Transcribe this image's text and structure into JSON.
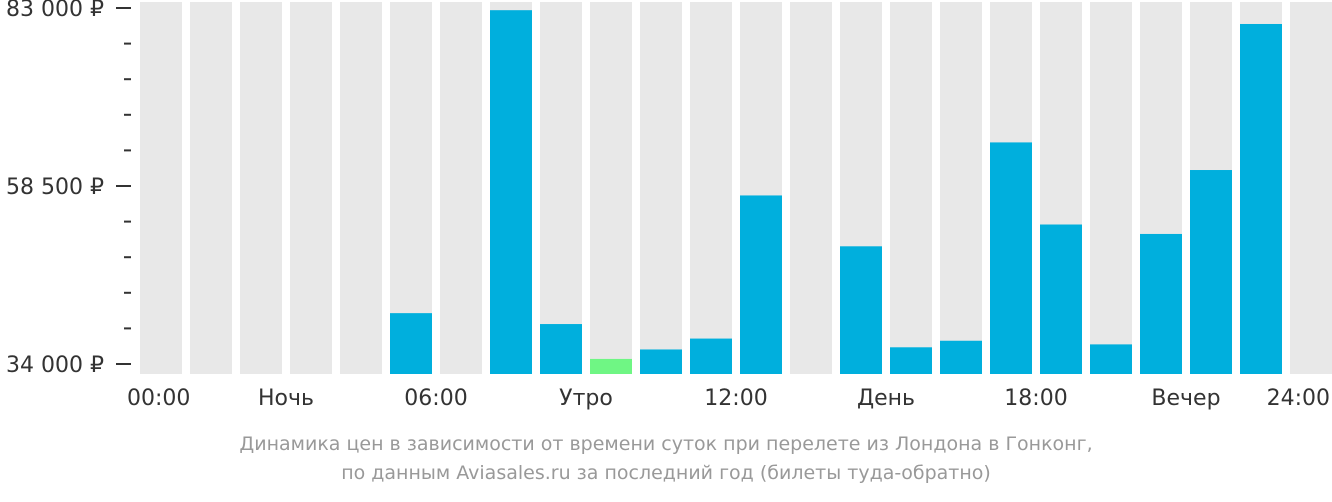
{
  "chart_data": {
    "type": "bar",
    "categories": [
      "00",
      "01",
      "02",
      "03",
      "04",
      "05",
      "06",
      "07",
      "08",
      "09",
      "10",
      "11",
      "12",
      "13",
      "14",
      "15",
      "16",
      "17",
      "18",
      "19",
      "20",
      "21",
      "22",
      "23"
    ],
    "values": [
      null,
      null,
      null,
      null,
      null,
      41000,
      null,
      82700,
      39500,
      34700,
      36000,
      37500,
      57200,
      null,
      50200,
      36300,
      37200,
      64500,
      53200,
      36700,
      51900,
      60700,
      80800,
      null
    ],
    "highlight_index": 9,
    "ylim": [
      34000,
      83000
    ],
    "yticks": [
      {
        "value": 34000,
        "label": "34 000 ₽"
      },
      {
        "value": 58500,
        "label": "58 500 ₽"
      },
      {
        "value": 83000,
        "label": "83 000 ₽"
      }
    ],
    "minor_ticks_per_interval": 4,
    "xlabels": [
      {
        "position": 0,
        "label": "00:00"
      },
      {
        "position": 3,
        "label": "Ночь"
      },
      {
        "position": 6,
        "label": "06:00"
      },
      {
        "position": 9,
        "label": "Утро"
      },
      {
        "position": 12,
        "label": "12:00"
      },
      {
        "position": 15,
        "label": "День"
      },
      {
        "position": 18,
        "label": "18:00"
      },
      {
        "position": 21,
        "label": "Вечер"
      },
      {
        "position": 24,
        "label": "24:00"
      }
    ],
    "title": "Динамика цен в зависимости от времени суток при перелете из Лондона в Гонконг,",
    "subtitle": "по данным Aviasales.ru за последний год (билеты туда-обратно)"
  },
  "colors": {
    "bar": "#00afdd",
    "highlight": "#6ff684",
    "background_bar": "#e8e8e8",
    "axis": "#333333",
    "caption": "#999999"
  }
}
